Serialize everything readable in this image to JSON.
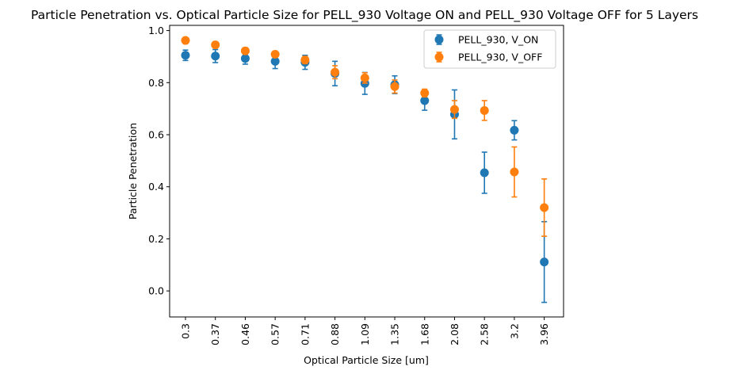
{
  "chart_data": {
    "type": "scatter",
    "title": "Particle Penetration vs. Optical Particle Size for PELL_930 Voltage ON and PELL_930 Voltage OFF for 5 Layers",
    "xlabel": "Optical Particle Size [um]",
    "ylabel": "Particle Penetration",
    "categories": [
      "0.3",
      "0.37",
      "0.46",
      "0.57",
      "0.71",
      "0.88",
      "1.09",
      "1.35",
      "1.68",
      "2.08",
      "2.58",
      "3.2",
      "3.96"
    ],
    "ylim": [
      -0.1,
      1.02
    ],
    "yticks": [
      "0.0",
      "0.2",
      "0.4",
      "0.6",
      "0.8",
      "1.0"
    ],
    "grid": false,
    "legend_position": "top-right",
    "series": [
      {
        "name": "PELL_930, V_ON",
        "color": "#1f77b4",
        "values": [
          0.905,
          0.902,
          0.893,
          0.882,
          0.878,
          0.835,
          0.797,
          0.792,
          0.731,
          0.678,
          0.454,
          0.617,
          0.111
        ],
        "errors": [
          0.02,
          0.025,
          0.022,
          0.028,
          0.027,
          0.047,
          0.042,
          0.034,
          0.037,
          0.094,
          0.079,
          0.037,
          0.155
        ]
      },
      {
        "name": "PELL_930, V_OFF",
        "color": "#ff7f0e",
        "values": [
          0.962,
          0.945,
          0.922,
          0.909,
          0.887,
          0.84,
          0.818,
          0.785,
          0.76,
          0.697,
          0.693,
          0.457,
          0.32
        ],
        "errors": [
          0.008,
          0.012,
          0.012,
          0.01,
          0.014,
          0.025,
          0.02,
          0.025,
          0.015,
          0.034,
          0.038,
          0.096,
          0.11
        ]
      }
    ]
  }
}
